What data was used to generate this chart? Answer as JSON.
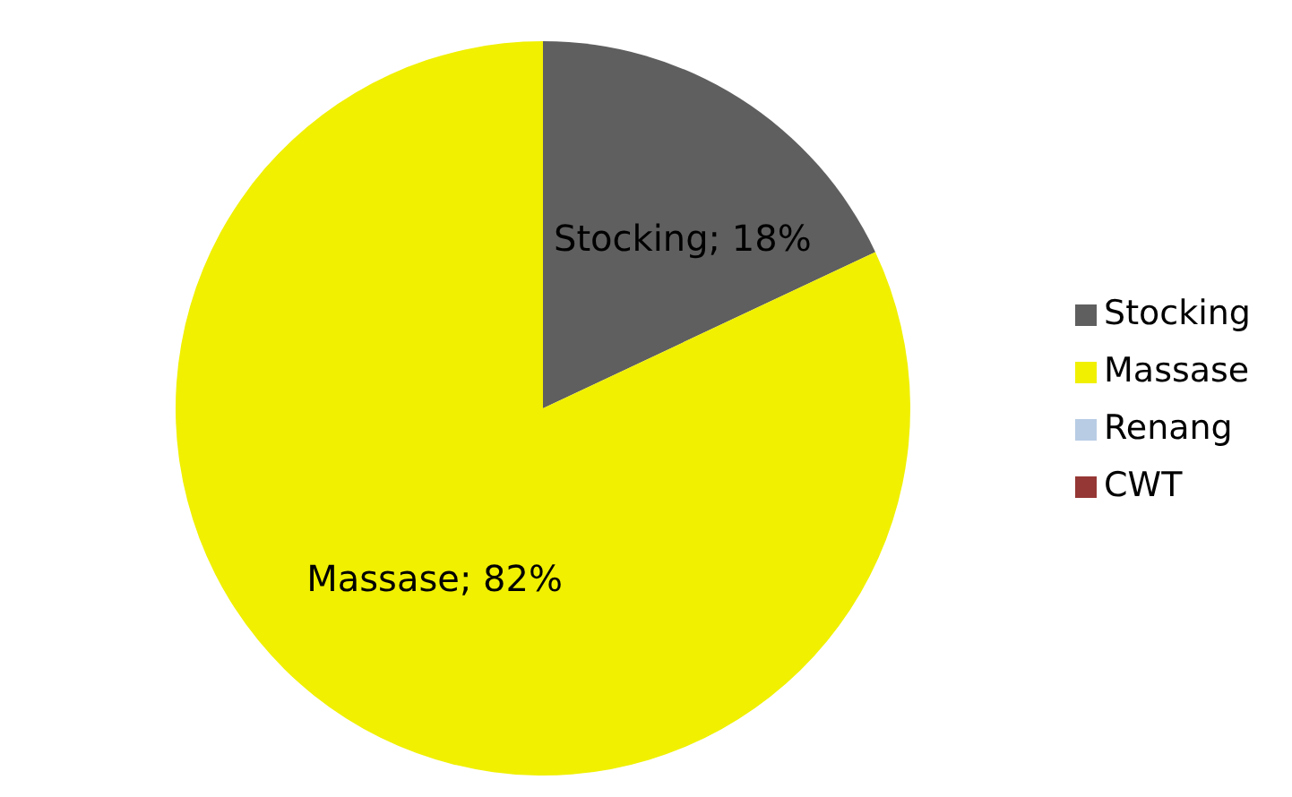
{
  "chart_data": {
    "type": "pie",
    "categories": [
      "Stocking",
      "Massase",
      "Renang",
      "CWT"
    ],
    "values": [
      18,
      82,
      0,
      0
    ],
    "colors": [
      "#5f5f5f",
      "#f0f000",
      "#b8cce4",
      "#953735"
    ],
    "value_labels": [
      "Stocking; 18%",
      "Massase; 82%",
      null,
      null
    ],
    "legend": "right"
  }
}
